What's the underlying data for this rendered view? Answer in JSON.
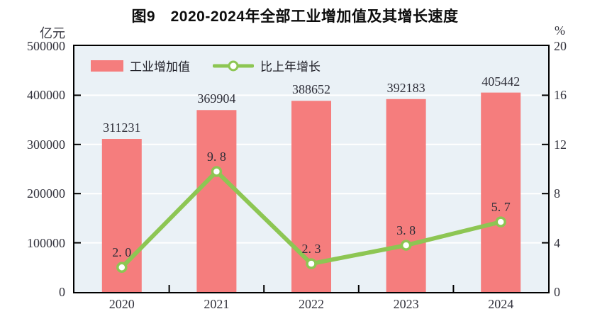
{
  "title": "图9　2020-2024年全部工业增加值及其增长速度",
  "left_axis": {
    "unit": "亿元",
    "ticks": [
      "500000",
      "400000",
      "300000",
      "200000",
      "100000",
      "0"
    ]
  },
  "right_axis": {
    "unit": "%",
    "ticks": [
      "20",
      "16",
      "12",
      "8",
      "4",
      "0"
    ]
  },
  "legend": [
    {
      "label": "工业增加值",
      "type": "bar"
    },
    {
      "label": "比上年增长",
      "type": "line"
    }
  ],
  "colors": {
    "bar": "#f57d7d",
    "line": "#8dc653",
    "marker_fill": "#ffffff",
    "plot_bg": "#eaf1f6",
    "grid": "#ffffff",
    "axis": "#000000",
    "label": "#2e2e38"
  },
  "chart_data": {
    "type": "bar",
    "categories": [
      "2020",
      "2021",
      "2022",
      "2023",
      "2024"
    ],
    "series": [
      {
        "name": "工业增加值",
        "type": "bar",
        "axis": "left",
        "values": [
          311231,
          369904,
          388652,
          392183,
          405442
        ],
        "labels": [
          "311231",
          "369904",
          "388652",
          "392183",
          "405442"
        ]
      },
      {
        "name": "比上年增长",
        "type": "line",
        "axis": "right",
        "values": [
          2.0,
          9.8,
          2.3,
          3.8,
          5.7
        ],
        "labels": [
          "2. 0",
          "9. 8",
          "2. 3",
          "3. 8",
          "5. 7"
        ]
      }
    ],
    "xlabel": "",
    "ylabel_left": "亿元",
    "ylabel_right": "%",
    "left_ylim": [
      0,
      500000
    ],
    "right_ylim": [
      0,
      20
    ],
    "grid": true,
    "legend_position": "top-left-inside"
  }
}
